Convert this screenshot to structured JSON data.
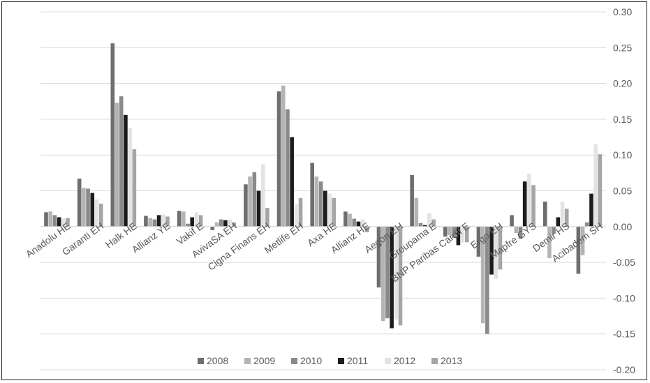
{
  "chart_data": {
    "type": "bar",
    "title": "",
    "xlabel": "",
    "ylabel": "",
    "ylim": [
      -0.2,
      0.3
    ],
    "y_axis_side": "right",
    "yticks": [
      "0.30",
      "0.25",
      "0.20",
      "0.15",
      "0.10",
      "0.05",
      "0.00",
      "-0.05",
      "-0.10",
      "-0.15",
      "-0.20"
    ],
    "grid": "horizontal",
    "legend_position": "bottom",
    "categories": [
      "Anadolu HE",
      "Garanti EH",
      "Halk HE",
      "Allianz YE",
      "Vakif E",
      "AvivaSA EH",
      "Cigna Finans EH",
      "Metlife EH",
      "Axa HE",
      "Allianz HE",
      "Aegon EH",
      "Groupama E",
      "BNP Paribas Cardif E",
      "Ergo EH",
      "Mapfre GYS",
      "Demir HS",
      "Acibadem SH"
    ],
    "series": [
      {
        "name": "2008",
        "color": "#6e6e6e",
        "values": [
          0.02,
          0.067,
          0.256,
          0.015,
          0.022,
          -0.005,
          0.059,
          0.189,
          0.089,
          0.021,
          -0.085,
          0.072,
          -0.014,
          -0.042,
          0.016,
          0.035,
          -0.066
        ]
      },
      {
        "name": "2009",
        "color": "#b4b4b4",
        "values": [
          0.021,
          0.054,
          0.173,
          0.012,
          0.021,
          0.006,
          0.07,
          0.197,
          0.07,
          0.018,
          -0.132,
          0.04,
          -0.012,
          -0.135,
          -0.009,
          -0.044,
          -0.04
        ]
      },
      {
        "name": "2010",
        "color": "#8a8a8a",
        "values": [
          0.016,
          0.053,
          0.182,
          0.01,
          0.004,
          0.01,
          0.076,
          0.164,
          0.063,
          0.011,
          -0.128,
          0.005,
          -0.016,
          -0.15,
          -0.017,
          -0.01,
          0.006
        ]
      },
      {
        "name": "2011",
        "color": "#1c1c1c",
        "values": [
          0.013,
          0.047,
          0.156,
          0.016,
          0.013,
          0.009,
          0.05,
          0.125,
          0.05,
          0.007,
          -0.142,
          0.002,
          -0.026,
          -0.067,
          0.063,
          0.013,
          0.046
        ]
      },
      {
        "name": "2012",
        "color": "#e3e3e3",
        "values": [
          0.011,
          0.038,
          0.138,
          0.017,
          0.02,
          0.01,
          0.087,
          0.031,
          0.046,
          0.01,
          -0.13,
          0.019,
          -0.022,
          -0.073,
          0.074,
          0.035,
          0.115
        ]
      },
      {
        "name": "2013",
        "color": "#a5a5a5",
        "values": [
          0.012,
          0.032,
          0.108,
          0.014,
          0.016,
          0.006,
          0.026,
          0.04,
          0.04,
          -0.008,
          -0.138,
          0.01,
          -0.022,
          -0.06,
          0.058,
          0.025,
          0.101
        ]
      }
    ]
  }
}
